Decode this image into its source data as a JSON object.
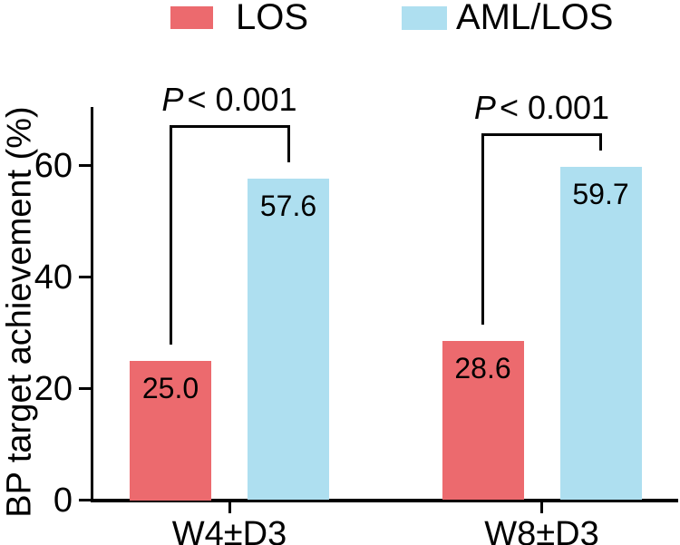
{
  "chart_data": {
    "type": "bar",
    "title": "",
    "categories": [
      "W4±D3",
      "W8±D3"
    ],
    "series": [
      {
        "name": "LOS",
        "color": "#EC6A6E",
        "values": [
          25.0,
          28.6
        ]
      },
      {
        "name": "AML/LOS",
        "color": "#AEDFF0",
        "values": [
          57.6,
          59.7
        ]
      }
    ],
    "ylabel": "BP target achievement (%)",
    "xlabel": "",
    "ylim": [
      0,
      70.5
    ],
    "yticks": [
      "0",
      "20",
      "40",
      "60"
    ],
    "grid": false,
    "legend_position": "top",
    "annotations": [
      {
        "group": 0,
        "symbol": "P",
        "rest": "< 0.001"
      },
      {
        "group": 1,
        "symbol": "P",
        "rest": "< 0.001"
      }
    ]
  },
  "colors": {
    "axis": "#000000",
    "background": "#ffffff"
  }
}
